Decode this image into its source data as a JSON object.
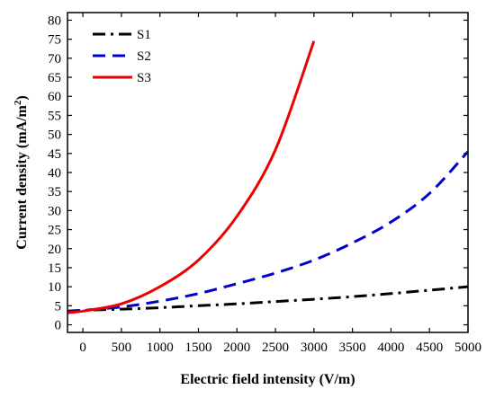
{
  "chart_data": {
    "type": "line",
    "title": "",
    "xlabel": "Electric field intensity (V/m)",
    "ylabel_main": "Current density (mA/m",
    "ylabel_sup": "2",
    "ylabel_close": ")",
    "xlim": [
      -200,
      5000
    ],
    "ylim": [
      -2,
      82
    ],
    "xticks": [
      0,
      500,
      1000,
      1500,
      2000,
      2500,
      3000,
      3500,
      4000,
      4500,
      5000
    ],
    "yticks": [
      0,
      5,
      10,
      15,
      20,
      25,
      30,
      35,
      40,
      45,
      50,
      55,
      60,
      65,
      70,
      75,
      80
    ],
    "xtick_labels": [
      "0",
      "500",
      "1000",
      "1500",
      "2000",
      "2500",
      "3000",
      "3500",
      "4000",
      "4500",
      "5000"
    ],
    "ytick_labels": [
      "0",
      "5",
      "10",
      "15",
      "20",
      "25",
      "30",
      "35",
      "40",
      "45",
      "50",
      "55",
      "60",
      "65",
      "70",
      "75",
      "80"
    ],
    "legend_position": "top-left",
    "series": [
      {
        "name": "S1",
        "color": "#000000",
        "dash": "dash-dot",
        "x": [
          -200,
          0,
          500,
          1000,
          1500,
          2000,
          2500,
          3000,
          3500,
          4000,
          4500,
          5000
        ],
        "y": [
          3.6,
          3.8,
          4.1,
          4.5,
          5.0,
          5.5,
          6.1,
          6.7,
          7.4,
          8.2,
          9.1,
          10.0
        ]
      },
      {
        "name": "S2",
        "color": "#0000cc",
        "dash": "dashed",
        "x": [
          -200,
          0,
          500,
          1000,
          1500,
          2000,
          2500,
          3000,
          3500,
          4000,
          4500,
          5000
        ],
        "y": [
          3.5,
          3.8,
          4.7,
          6.2,
          8.2,
          10.8,
          13.6,
          17.0,
          21.5,
          27.0,
          34.5,
          45.5
        ]
      },
      {
        "name": "S3",
        "color": "#ee0000",
        "dash": "solid",
        "x": [
          -200,
          0,
          500,
          1000,
          1500,
          2000,
          2500,
          3000
        ],
        "y": [
          3.2,
          3.6,
          5.5,
          10.0,
          17.0,
          28.5,
          46.0,
          74.5
        ]
      }
    ]
  }
}
